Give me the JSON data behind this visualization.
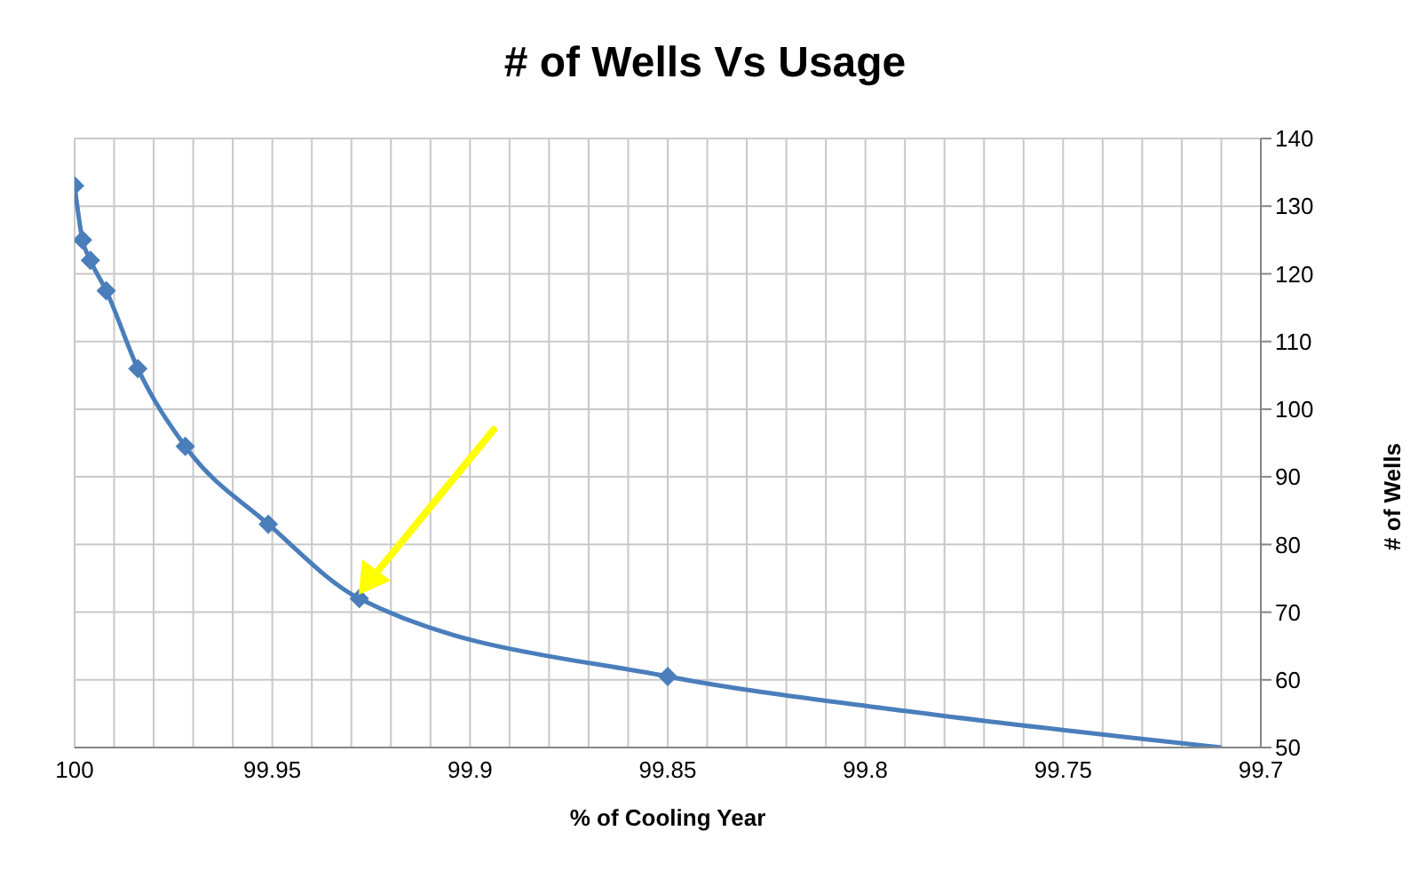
{
  "chart_data": {
    "type": "line",
    "title": "# of Wells Vs Usage",
    "xlabel": "% of Cooling Year",
    "ylabel": "# of Wells",
    "xlim": [
      100,
      99.7
    ],
    "xticks": [
      100,
      {
        "value": 99.99,
        "label": null
      },
      {
        "value": 99.98,
        "label": null
      },
      {
        "value": 99.97,
        "label": null
      },
      {
        "value": 99.96,
        "label": null
      },
      99.95,
      {
        "value": 99.94,
        "label": null
      },
      {
        "value": 99.93,
        "label": null
      },
      {
        "value": 99.92,
        "label": null
      },
      {
        "value": 99.91,
        "label": null
      },
      99.9,
      {
        "value": 99.89,
        "label": null
      },
      {
        "value": 99.88,
        "label": null
      },
      {
        "value": 99.87,
        "label": null
      },
      {
        "value": 99.86,
        "label": null
      },
      99.85,
      {
        "value": 99.84,
        "label": null
      },
      {
        "value": 99.83,
        "label": null
      },
      {
        "value": 99.82,
        "label": null
      },
      {
        "value": 99.81,
        "label": null
      },
      99.8,
      {
        "value": 99.79,
        "label": null
      },
      {
        "value": 99.78,
        "label": null
      },
      {
        "value": 99.77,
        "label": null
      },
      {
        "value": 99.76,
        "label": null
      },
      99.75,
      {
        "value": 99.74,
        "label": null
      },
      {
        "value": 99.73,
        "label": null
      },
      {
        "value": 99.72,
        "label": null
      },
      {
        "value": 99.71,
        "label": null
      },
      99.7
    ],
    "ylim": [
      50,
      140
    ],
    "yticks": [
      50,
      60,
      70,
      80,
      90,
      100,
      110,
      120,
      130,
      140
    ],
    "grid": true,
    "marker": "none",
    "line_style": "solid",
    "series": [
      {
        "color": "#4a7ebb",
        "x": [
          100,
          99.998,
          99.996,
          99.992,
          99.984,
          99.972,
          99.951,
          99.928,
          99.85,
          99.79,
          99.71
        ],
        "values": [
          133,
          125,
          122,
          117.5,
          106,
          94.5,
          83,
          72,
          60.5,
          55.4,
          50
        ]
      },
      {
        "type": "scatter",
        "color": "#4a7ebb",
        "marker": "diamond",
        "x": [
          100,
          99.998,
          99.996,
          99.992,
          99.984,
          99.972,
          99.951,
          99.928,
          99.85
        ],
        "values": [
          133,
          125,
          122,
          117.5,
          106,
          94.5,
          83,
          72,
          60.5
        ]
      }
    ]
  }
}
